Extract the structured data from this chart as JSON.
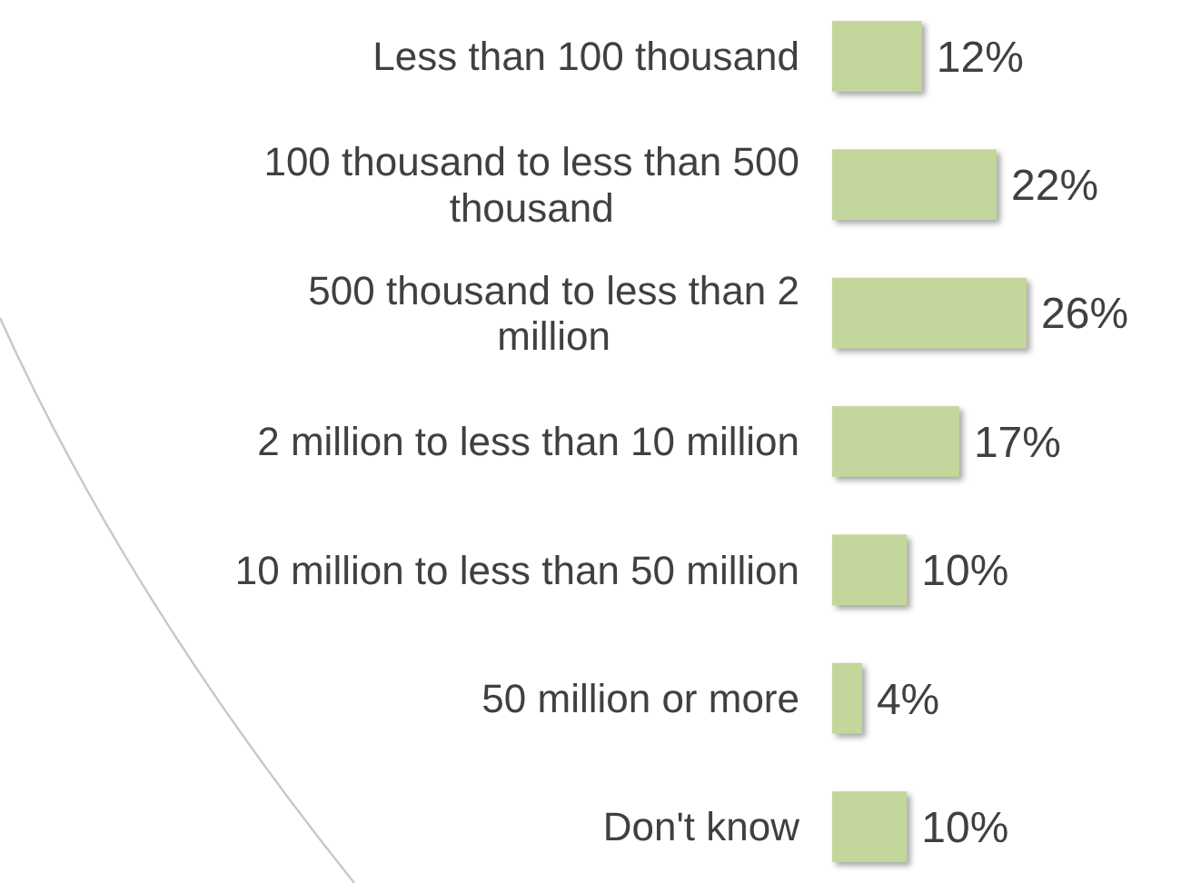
{
  "chart_data": {
    "type": "bar",
    "orientation": "horizontal",
    "categories": [
      "Less than 100 thousand",
      "100 thousand to less than 500 thousand",
      "500 thousand to less than 2 million",
      "2 million to less than 10 million",
      "10 million to less than 50 million",
      "50 million or more",
      "Don't know"
    ],
    "values": [
      12,
      22,
      26,
      17,
      10,
      4,
      10
    ],
    "value_labels": [
      "12%",
      "22%",
      "26%",
      "17%",
      "10%",
      "4%",
      "10%"
    ],
    "color": "#c3d69b"
  }
}
